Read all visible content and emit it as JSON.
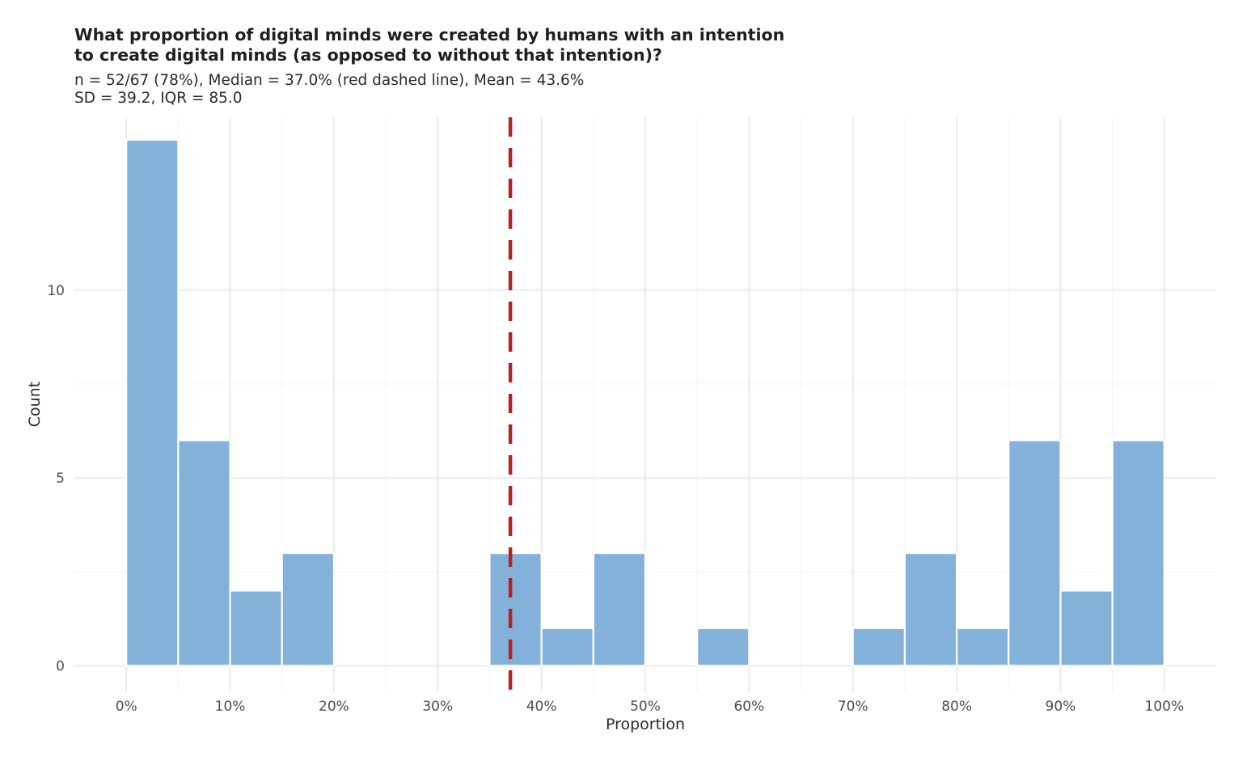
{
  "chart_data": {
    "type": "bar",
    "title": "What proportion of digital minds were created by humans with an intention\nto create digital minds (as opposed to without that intention)?",
    "subtitle": "n = 52/67 (78%), Median = 37.0% (red dashed line), Mean = 43.6%\nSD = 39.2, IQR = 85.0",
    "xlabel": "Proportion",
    "ylabel": "Count",
    "xlim": [
      -0.05,
      1.05
    ],
    "ylim": [
      -0.7,
      14.6
    ],
    "x_ticks": [
      0,
      0.1,
      0.2,
      0.3,
      0.4,
      0.5,
      0.6,
      0.7,
      0.8,
      0.9,
      1.0
    ],
    "x_tick_labels": [
      "0%",
      "10%",
      "20%",
      "30%",
      "40%",
      "50%",
      "60%",
      "70%",
      "80%",
      "90%",
      "100%"
    ],
    "y_ticks": [
      0,
      5,
      10
    ],
    "y_tick_labels": [
      "0",
      "5",
      "10"
    ],
    "bin_width": 0.05,
    "bin_starts": [
      0,
      0.05,
      0.1,
      0.15,
      0.2,
      0.25,
      0.3,
      0.35,
      0.4,
      0.45,
      0.5,
      0.55,
      0.6,
      0.65,
      0.7,
      0.75,
      0.8,
      0.85,
      0.9,
      0.95
    ],
    "values": [
      14,
      6,
      2,
      3,
      0,
      0,
      0,
      3,
      1,
      3,
      0,
      1,
      0,
      0,
      1,
      3,
      1,
      6,
      2,
      6
    ],
    "median": 0.37,
    "bar_color": "#6fa3d4",
    "bar_edge_color": "#ffffff",
    "median_line_color": "#b22222",
    "grid": true,
    "legend": "none"
  }
}
